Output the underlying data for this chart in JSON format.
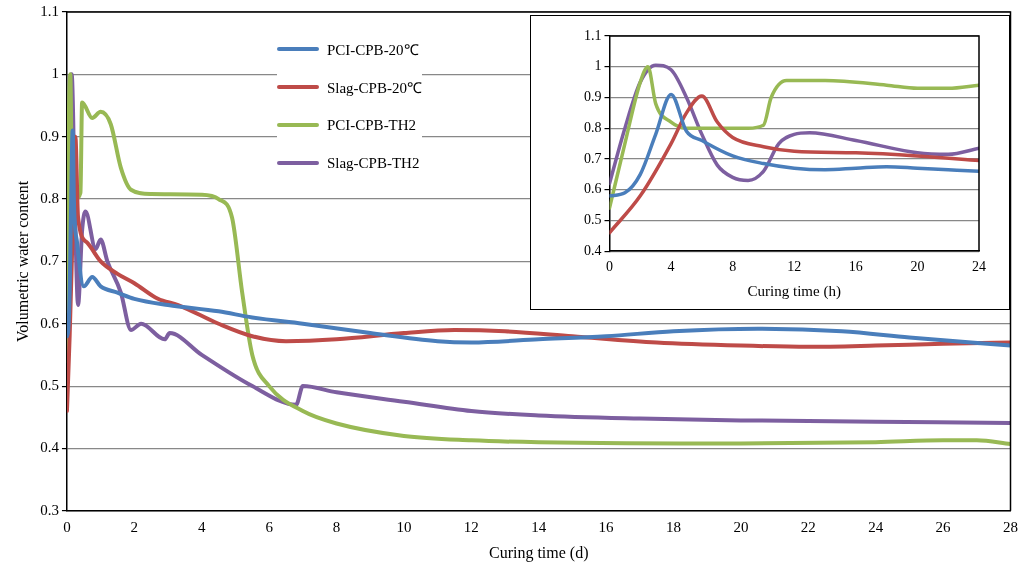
{
  "chart_data": [
    {
      "type": "line",
      "xlabel": "Curing time (d)",
      "ylabel": "Volumetric water content",
      "xlim": [
        0,
        28
      ],
      "xticks": [
        0,
        2,
        4,
        6,
        8,
        10,
        12,
        14,
        16,
        18,
        20,
        22,
        24,
        26,
        28
      ],
      "ylim": [
        0.3,
        1.1
      ],
      "yticks": [
        0.3,
        0.4,
        0.5,
        0.6,
        0.7,
        0.8,
        0.9,
        1,
        1.1
      ],
      "grid": "y",
      "legend": "top left",
      "series": [
        {
          "name": "PCI-CPB-20℃",
          "color": "#4a7ebb",
          "x": [
            0,
            0.04,
            0.08,
            0.12,
            0.17,
            0.21,
            0.3,
            0.5,
            0.75,
            1,
            1.5,
            2,
            3,
            4.5,
            5.5,
            7,
            9,
            11,
            12,
            14,
            16,
            18,
            20.5,
            23,
            25,
            28
          ],
          "values": [
            0.58,
            0.59,
            0.65,
            0.78,
            0.91,
            0.79,
            0.73,
            0.66,
            0.675,
            0.66,
            0.65,
            0.64,
            0.63,
            0.62,
            0.61,
            0.6,
            0.585,
            0.572,
            0.57,
            0.575,
            0.58,
            0.588,
            0.592,
            0.588,
            0.578,
            0.565
          ]
        },
        {
          "name": "Slag-CPB-20℃",
          "color": "#be4b48",
          "x": [
            0,
            0.08,
            0.17,
            0.25,
            0.33,
            0.6,
            1,
            1.5,
            2,
            2.7,
            3.3,
            4.5,
            5.5,
            6.5,
            8,
            10,
            11.5,
            13,
            15,
            17.5,
            20,
            22,
            24,
            26,
            28
          ],
          "values": [
            0.46,
            0.58,
            0.75,
            0.9,
            0.77,
            0.73,
            0.7,
            0.68,
            0.665,
            0.64,
            0.63,
            0.6,
            0.58,
            0.572,
            0.575,
            0.585,
            0.59,
            0.588,
            0.58,
            0.57,
            0.565,
            0.563,
            0.565,
            0.568,
            0.57
          ]
        },
        {
          "name": "PCI-CPB-TH2",
          "color": "#98b954",
          "x": [
            0,
            0.05,
            0.1,
            0.15,
            0.25,
            0.4,
            0.45,
            0.75,
            1,
            1.3,
            1.6,
            1.9,
            2.5,
            4,
            4.5,
            4.9,
            5.2,
            5.5,
            6,
            7,
            8,
            10,
            12,
            14,
            20,
            24,
            26,
            27,
            28
          ],
          "values": [
            0.54,
            0.9,
            1.0,
            0.82,
            0.8,
            0.81,
            0.955,
            0.93,
            0.94,
            0.92,
            0.85,
            0.815,
            0.808,
            0.807,
            0.8,
            0.77,
            0.65,
            0.55,
            0.5,
            0.46,
            0.44,
            0.42,
            0.413,
            0.41,
            0.408,
            0.41,
            0.413,
            0.413,
            0.407
          ]
        },
        {
          "name": "Slag-CPB-TH2",
          "color": "#7d5fa0",
          "x": [
            0,
            0.08,
            0.14,
            0.25,
            0.33,
            0.45,
            0.55,
            0.85,
            1,
            1.2,
            1.6,
            1.9,
            2.2,
            2.9,
            3.05,
            4,
            5.5,
            6.8,
            7,
            8,
            10,
            12,
            14,
            17,
            20,
            24,
            28
          ],
          "values": [
            0.62,
            0.95,
            1.0,
            0.75,
            0.63,
            0.75,
            0.78,
            0.72,
            0.735,
            0.7,
            0.65,
            0.59,
            0.6,
            0.575,
            0.585,
            0.55,
            0.5,
            0.47,
            0.5,
            0.49,
            0.475,
            0.46,
            0.453,
            0.448,
            0.445,
            0.443,
            0.441
          ]
        }
      ]
    },
    {
      "type": "line",
      "xlabel": "Curing time (h)",
      "xlim": [
        0,
        24
      ],
      "xticks": [
        0,
        4,
        8,
        12,
        16,
        20,
        24
      ],
      "ylim": [
        0.4,
        1.1
      ],
      "yticks": [
        0.4,
        0.5,
        0.6,
        0.7,
        0.8,
        0.9,
        1,
        1.1
      ],
      "grid": "y",
      "series": [
        {
          "color": "#4a7ebb",
          "x": [
            0,
            1,
            2,
            3,
            4,
            5,
            6,
            8,
            10,
            12,
            14,
            16,
            18,
            20,
            22,
            24
          ],
          "values": [
            0.58,
            0.59,
            0.65,
            0.78,
            0.91,
            0.79,
            0.76,
            0.71,
            0.685,
            0.67,
            0.665,
            0.67,
            0.675,
            0.67,
            0.665,
            0.66
          ]
        },
        {
          "color": "#be4b48",
          "x": [
            0,
            2,
            4,
            5,
            6,
            7,
            8,
            10,
            12,
            16,
            20,
            24
          ],
          "values": [
            0.46,
            0.58,
            0.75,
            0.85,
            0.905,
            0.82,
            0.77,
            0.74,
            0.725,
            0.72,
            0.71,
            0.695
          ]
        },
        {
          "color": "#98b954",
          "x": [
            0,
            1,
            2,
            2.5,
            3,
            4,
            5,
            6,
            9,
            10,
            10.5,
            11.5,
            14,
            18,
            20,
            22,
            24
          ],
          "values": [
            0.54,
            0.75,
            0.95,
            1.0,
            0.88,
            0.82,
            0.8,
            0.8,
            0.8,
            0.81,
            0.9,
            0.955,
            0.955,
            0.94,
            0.93,
            0.93,
            0.94
          ]
        },
        {
          "color": "#7d5fa0",
          "x": [
            0,
            1,
            2,
            3,
            4,
            5,
            6,
            7,
            8,
            9,
            10,
            11,
            12,
            13,
            16,
            20,
            22,
            24
          ],
          "values": [
            0.62,
            0.8,
            0.95,
            1.005,
            0.99,
            0.9,
            0.78,
            0.68,
            0.64,
            0.63,
            0.66,
            0.75,
            0.78,
            0.785,
            0.76,
            0.72,
            0.715,
            0.735
          ]
        }
      ]
    }
  ]
}
